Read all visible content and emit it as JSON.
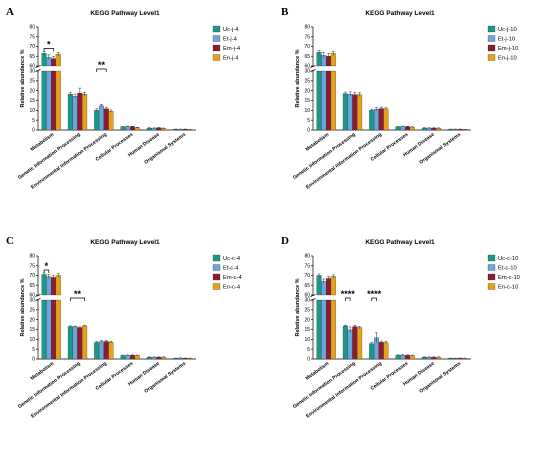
{
  "chart_data": [
    {
      "panel": "A",
      "type": "bar",
      "title": "KEGG Pathway Level1",
      "ylabel": "Relative abundance %",
      "ylim": [
        0,
        80
      ],
      "y_break": [
        30,
        60
      ],
      "yticks_lower": [
        0,
        5,
        10,
        15,
        20,
        25,
        30
      ],
      "yticks_upper": [
        60,
        65,
        70,
        75,
        80
      ],
      "categories": [
        "Metabolism",
        "Genetic Information Processing",
        "Environmental Information Processing",
        "Cellular Processes",
        "Human Disease",
        "Organismal Systems"
      ],
      "colors": [
        "#1a9985",
        "#6aa5e0",
        "#8e1b2e",
        "#e3a21a"
      ],
      "series": [
        {
          "name": "Uc-j-4",
          "values": [
            66.5,
            18.2,
            10.0,
            1.6,
            1.0,
            0.4
          ],
          "errors": [
            1.0,
            0.8,
            0.8,
            0.2,
            0.2,
            0.1
          ]
        },
        {
          "name": "Et-j-4",
          "values": [
            64.5,
            17.2,
            12.3,
            1.8,
            0.9,
            0.4
          ],
          "errors": [
            1.2,
            1.0,
            0.8,
            0.2,
            0.2,
            0.1
          ]
        },
        {
          "name": "Em-j-4",
          "values": [
            63.8,
            18.8,
            10.8,
            1.7,
            1.1,
            0.4
          ],
          "errors": [
            1.2,
            2.5,
            0.8,
            0.2,
            0.2,
            0.1
          ]
        },
        {
          "name": "En-j-4",
          "values": [
            66.0,
            18.2,
            9.6,
            1.2,
            0.8,
            0.3
          ],
          "errors": [
            1.0,
            1.0,
            0.6,
            0.2,
            0.2,
            0.1
          ]
        }
      ],
      "significance": [
        {
          "category": 0,
          "from": 0,
          "to": 2,
          "label": "*"
        },
        {
          "category": 2,
          "from": 0,
          "to": 2,
          "label": "**"
        }
      ]
    },
    {
      "panel": "B",
      "type": "bar",
      "title": "KEGG Pathway Level1",
      "ylabel": "Relative abundance %",
      "ylim": [
        0,
        80
      ],
      "y_break": [
        30,
        60
      ],
      "yticks_lower": [
        0,
        5,
        10,
        15,
        20,
        25,
        30
      ],
      "yticks_upper": [
        60,
        65,
        70,
        75,
        80
      ],
      "categories": [
        "Metabolism",
        "Genetic Information Processing",
        "Environmental Information Processing",
        "Cellular Processes",
        "Human Disease",
        "Organismal Systems"
      ],
      "colors": [
        "#1a9985",
        "#6aa5e0",
        "#8e1b2e",
        "#e3a21a"
      ],
      "series": [
        {
          "name": "Uc-j-10",
          "values": [
            67.0,
            18.5,
            10.0,
            1.6,
            1.0,
            0.4
          ],
          "errors": [
            1.0,
            0.8,
            0.6,
            0.2,
            0.2,
            0.1
          ]
        },
        {
          "name": "Et-j-10",
          "values": [
            65.5,
            18.2,
            10.6,
            1.8,
            1.0,
            0.4
          ],
          "errors": [
            1.5,
            1.2,
            0.8,
            0.2,
            0.2,
            0.1
          ]
        },
        {
          "name": "Em-j-10",
          "values": [
            65.0,
            18.0,
            10.9,
            1.7,
            1.0,
            0.4
          ],
          "errors": [
            1.5,
            1.2,
            0.8,
            0.2,
            0.2,
            0.1
          ]
        },
        {
          "name": "En-j-10",
          "values": [
            66.5,
            18.0,
            10.8,
            1.5,
            0.9,
            0.3
          ],
          "errors": [
            1.0,
            1.0,
            0.6,
            0.2,
            0.2,
            0.1
          ]
        }
      ],
      "significance": []
    },
    {
      "panel": "C",
      "type": "bar",
      "title": "KEGG Pathway Level1",
      "ylabel": "Relative abundance %",
      "ylim": [
        0,
        80
      ],
      "y_break": [
        30,
        60
      ],
      "yticks_lower": [
        0,
        5,
        10,
        15,
        20,
        25,
        30
      ],
      "yticks_upper": [
        60,
        65,
        70,
        75,
        80
      ],
      "categories": [
        "Metabolism",
        "Genetic Information Processing",
        "Environmental Information Processing",
        "Cellular Processes",
        "Human Disease",
        "Organismal Systems"
      ],
      "colors": [
        "#1a9985",
        "#6aa5e0",
        "#8e1b2e",
        "#e3a21a"
      ],
      "series": [
        {
          "name": "Uc-c-4",
          "values": [
            70.5,
            16.5,
            8.4,
            1.8,
            0.9,
            0.4
          ],
          "errors": [
            0.8,
            0.3,
            0.4,
            0.2,
            0.2,
            0.1
          ]
        },
        {
          "name": "Et-c-4",
          "values": [
            69.5,
            16.4,
            8.8,
            1.9,
            0.9,
            0.5
          ],
          "errors": [
            1.0,
            0.3,
            0.6,
            0.2,
            0.2,
            0.1
          ]
        },
        {
          "name": "Em-c-4",
          "values": [
            69.0,
            16.0,
            8.9,
            1.9,
            0.9,
            0.4
          ],
          "errors": [
            1.0,
            0.3,
            0.5,
            0.2,
            0.2,
            0.1
          ]
        },
        {
          "name": "En-c-4",
          "values": [
            70.0,
            16.8,
            8.5,
            1.8,
            0.9,
            0.4
          ],
          "errors": [
            1.0,
            0.3,
            0.5,
            0.2,
            0.2,
            0.1
          ]
        }
      ],
      "significance": [
        {
          "category": 0,
          "from": 0,
          "to": 1,
          "label": "*"
        },
        {
          "category": 1,
          "from": 0,
          "to": 3,
          "label": "**"
        }
      ]
    },
    {
      "panel": "D",
      "type": "bar",
      "title": "KEGG Pathway Level1",
      "ylabel": "Relative abundance %",
      "ylim": [
        0,
        80
      ],
      "y_break": [
        30,
        60
      ],
      "yticks_lower": [
        0,
        5,
        10,
        15,
        20,
        25,
        30
      ],
      "yticks_upper": [
        60,
        65,
        70,
        75,
        80
      ],
      "categories": [
        "Metabolism",
        "Genetic Information Processing",
        "Environmental Information Processing",
        "Cellular Processes",
        "Human Disease",
        "Organismal Systems"
      ],
      "colors": [
        "#1a9985",
        "#6aa5e0",
        "#8e1b2e",
        "#e3a21a"
      ],
      "series": [
        {
          "name": "Uc-c-10",
          "values": [
            70.0,
            16.8,
            7.8,
            1.9,
            0.9,
            0.4
          ],
          "errors": [
            0.8,
            0.4,
            0.6,
            0.2,
            0.2,
            0.1
          ]
        },
        {
          "name": "Et-c-10",
          "values": [
            67.0,
            14.8,
            10.8,
            2.0,
            0.9,
            0.4
          ],
          "errors": [
            1.2,
            1.5,
            2.5,
            0.3,
            0.2,
            0.1
          ]
        },
        {
          "name": "Em-c-10",
          "values": [
            68.5,
            16.5,
            8.5,
            1.9,
            0.9,
            0.4
          ],
          "errors": [
            1.0,
            0.6,
            0.6,
            0.2,
            0.2,
            0.1
          ]
        },
        {
          "name": "En-c-10",
          "values": [
            69.5,
            16.0,
            8.3,
            1.8,
            0.9,
            0.4
          ],
          "errors": [
            0.8,
            0.6,
            0.6,
            0.2,
            0.2,
            0.1
          ]
        }
      ],
      "significance": [
        {
          "category": 1,
          "from": 0,
          "to": 1,
          "label": "****"
        },
        {
          "category": 2,
          "from": 0,
          "to": 1,
          "label": "****"
        }
      ]
    }
  ]
}
